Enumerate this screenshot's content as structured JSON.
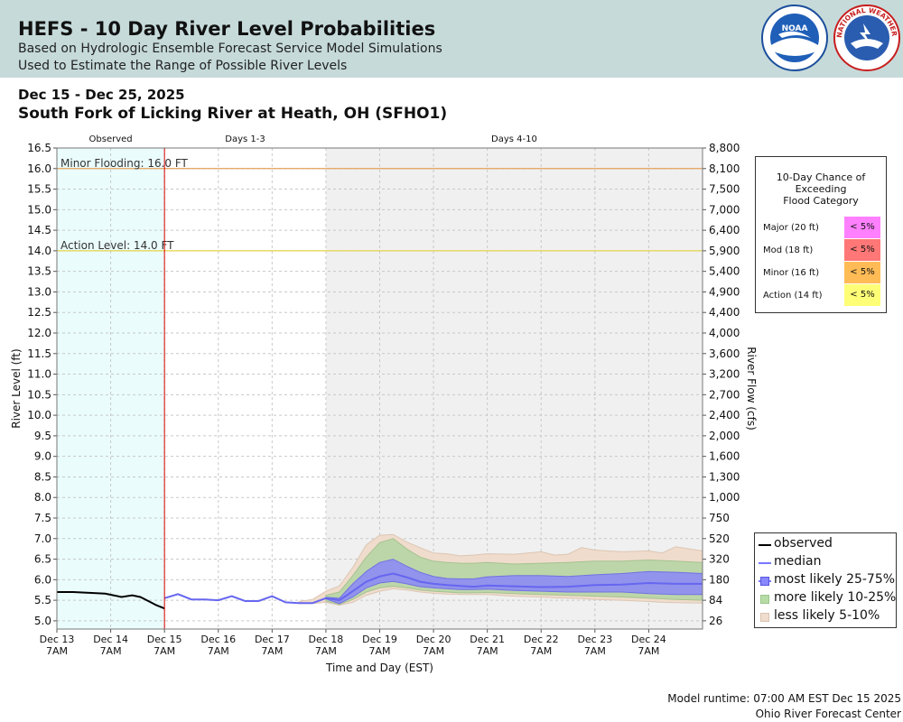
{
  "header": {
    "title": "HEFS - 10 Day River Level Probabilities",
    "subtitle1": "Based on Hydrologic Ensemble Forecast Service Model Simulations",
    "subtitle2": "Used to Estimate the Range of Possible River Levels",
    "noaa_logo_text": "NOAA",
    "nws_logo_text": "NATIONAL WEATHER SERVICE"
  },
  "date_range": "Dec 15 - Dec 25, 2025",
  "location": "South Fork of Licking River at Heath, OH (SFHO1)",
  "probability_table": {
    "title_line1": "10-Day Chance of",
    "title_line2": "Exceeding",
    "title_line3": "Flood Category",
    "rows": [
      {
        "label": "Major (20 ft)",
        "value": "< 5%",
        "color": "#ff80ff"
      },
      {
        "label": "Mod (18 ft)",
        "value": "< 5%",
        "color": "#ff7777"
      },
      {
        "label": "Minor (16 ft)",
        "value": "< 5%",
        "color": "#ffbb55"
      },
      {
        "label": "Action (14 ft)",
        "value": "< 5%",
        "color": "#ffff77"
      }
    ]
  },
  "legend": [
    {
      "label": "observed",
      "kind": "line",
      "color": "#000000"
    },
    {
      "label": "median",
      "kind": "line",
      "color": "#7777ff"
    },
    {
      "label": "most likely 25-75%",
      "kind": "square",
      "color": "#8888ff"
    },
    {
      "label": "more likely 10-25%",
      "kind": "square",
      "color": "#b6dca6"
    },
    {
      "label": "less likely 5-10%",
      "kind": "square",
      "color": "#f0dccc"
    }
  ],
  "footer": {
    "runtime": "Model runtime: 07:00 AM EST Dec 15 2025",
    "center": "Ohio River Forecast Center"
  },
  "chart_data": {
    "type": "area",
    "title": "South Fork of Licking River at Heath, OH (SFHO1)",
    "xlabel": "Time and Day (EST)",
    "ylabel": "River Level (ft)",
    "y2label": "River Flow (cfs)",
    "ylim": [
      4.8,
      16.5
    ],
    "y_ticks": [
      5.0,
      5.5,
      6.0,
      6.5,
      7.0,
      7.5,
      8.0,
      8.5,
      9.0,
      9.5,
      10.0,
      10.5,
      11.0,
      11.5,
      12.0,
      12.5,
      13.0,
      13.5,
      14.0,
      14.5,
      15.0,
      15.5,
      16.0,
      16.5
    ],
    "y2_ticks": [
      {
        "level": 16.5,
        "label": "8,800"
      },
      {
        "level": 16.0,
        "label": "8,100"
      },
      {
        "level": 15.5,
        "label": "7,500"
      },
      {
        "level": 15.0,
        "label": "7,000"
      },
      {
        "level": 14.5,
        "label": "6,400"
      },
      {
        "level": 14.0,
        "label": "5,900"
      },
      {
        "level": 13.5,
        "label": "5,400"
      },
      {
        "level": 13.0,
        "label": "4,900"
      },
      {
        "level": 12.5,
        "label": "4,400"
      },
      {
        "level": 12.0,
        "label": "4,000"
      },
      {
        "level": 11.5,
        "label": "3,600"
      },
      {
        "level": 11.0,
        "label": "3,200"
      },
      {
        "level": 10.5,
        "label": "2,700"
      },
      {
        "level": 10.0,
        "label": "2,400"
      },
      {
        "level": 9.5,
        "label": "2,000"
      },
      {
        "level": 9.0,
        "label": "1,600"
      },
      {
        "level": 8.5,
        "label": "1,300"
      },
      {
        "level": 8.0,
        "label": "1,000"
      },
      {
        "level": 7.5,
        "label": "750"
      },
      {
        "level": 7.0,
        "label": "520"
      },
      {
        "level": 6.5,
        "label": "320"
      },
      {
        "level": 6.0,
        "label": "180"
      },
      {
        "level": 5.5,
        "label": "84"
      },
      {
        "level": 5.0,
        "label": "26"
      }
    ],
    "xlim": [
      0,
      12
    ],
    "x_ticks": [
      {
        "t": 0,
        "day": "Dec 13",
        "time": "7AM"
      },
      {
        "t": 1,
        "day": "Dec 14",
        "time": "7AM"
      },
      {
        "t": 2,
        "day": "Dec 15",
        "time": "7AM"
      },
      {
        "t": 3,
        "day": "Dec 16",
        "time": "7AM"
      },
      {
        "t": 4,
        "day": "Dec 17",
        "time": "7AM"
      },
      {
        "t": 5,
        "day": "Dec 18",
        "time": "7AM"
      },
      {
        "t": 6,
        "day": "Dec 19",
        "time": "7AM"
      },
      {
        "t": 7,
        "day": "Dec 20",
        "time": "7AM"
      },
      {
        "t": 8,
        "day": "Dec 21",
        "time": "7AM"
      },
      {
        "t": 9,
        "day": "Dec 22",
        "time": "7AM"
      },
      {
        "t": 10,
        "day": "Dec 23",
        "time": "7AM"
      },
      {
        "t": 11,
        "day": "Dec 24",
        "time": "7AM"
      }
    ],
    "regions": [
      {
        "label": "Observed",
        "start": 0,
        "end": 2,
        "color": "#eafcfc"
      },
      {
        "label": "Days 1-3",
        "start": 2,
        "end": 5,
        "color": "#ffffff"
      },
      {
        "label": "Days 4-10",
        "start": 5,
        "end": 12,
        "color": "#f0f0f0"
      }
    ],
    "thresholds": [
      {
        "label": "Minor Flooding: 16.0 FT",
        "level": 16.0,
        "color": "#e5a25a"
      },
      {
        "label": "Action Level: 14.0 FT",
        "level": 14.0,
        "color": "#e5d44a"
      }
    ],
    "observed": {
      "name": "observed",
      "t": [
        0,
        0.3,
        0.6,
        0.9,
        1.05,
        1.2,
        1.4,
        1.55,
        1.7,
        1.85,
        2.0
      ],
      "values": [
        5.7,
        5.7,
        5.68,
        5.66,
        5.62,
        5.58,
        5.62,
        5.58,
        5.48,
        5.38,
        5.3
      ]
    },
    "median": {
      "name": "median",
      "t": [
        2.0,
        2.25,
        2.5,
        2.75,
        3.0,
        3.25,
        3.5,
        3.75,
        4.0,
        4.25,
        4.5,
        4.75,
        5.0,
        5.25,
        5.5,
        5.75,
        6.0,
        6.25,
        6.5,
        6.75,
        7.0,
        7.25,
        7.5,
        7.75,
        8.0,
        8.5,
        9.0,
        9.5,
        10.0,
        10.5,
        11.0,
        11.5,
        12.0
      ],
      "values": [
        5.55,
        5.65,
        5.52,
        5.52,
        5.5,
        5.6,
        5.48,
        5.48,
        5.6,
        5.45,
        5.43,
        5.43,
        5.55,
        5.5,
        5.72,
        5.95,
        6.08,
        6.15,
        6.06,
        5.95,
        5.9,
        5.87,
        5.85,
        5.83,
        5.86,
        5.84,
        5.82,
        5.83,
        5.87,
        5.88,
        5.92,
        5.9,
        5.9
      ]
    },
    "band_25_75": {
      "name": "most likely 25-75%",
      "t": [
        5.0,
        5.25,
        5.5,
        5.75,
        6.0,
        6.25,
        6.5,
        6.75,
        7.0,
        7.25,
        7.5,
        7.75,
        8.0,
        8.5,
        9.0,
        9.5,
        10.0,
        10.5,
        11.0,
        11.5,
        12.0
      ],
      "upper": [
        5.57,
        5.55,
        5.9,
        6.2,
        6.42,
        6.5,
        6.33,
        6.18,
        6.08,
        6.03,
        6.02,
        6.02,
        6.07,
        6.1,
        6.1,
        6.08,
        6.12,
        6.15,
        6.2,
        6.18,
        6.15
      ],
      "lower": [
        5.53,
        5.42,
        5.58,
        5.8,
        5.92,
        5.96,
        5.9,
        5.83,
        5.8,
        5.78,
        5.76,
        5.76,
        5.77,
        5.74,
        5.72,
        5.7,
        5.7,
        5.7,
        5.66,
        5.64,
        5.64
      ]
    },
    "band_10_25": {
      "name": "more likely 10-25%",
      "t": [
        5.0,
        5.25,
        5.5,
        5.75,
        6.0,
        6.25,
        6.5,
        6.75,
        7.0,
        7.25,
        7.5,
        7.75,
        8.0,
        8.5,
        9.0,
        9.5,
        10.0,
        10.5,
        11.0,
        11.5,
        12.0
      ],
      "upper": [
        5.62,
        5.7,
        6.1,
        6.55,
        6.9,
        7.0,
        6.75,
        6.55,
        6.45,
        6.42,
        6.4,
        6.4,
        6.42,
        6.38,
        6.4,
        6.42,
        6.45,
        6.45,
        6.48,
        6.45,
        6.42
      ],
      "lower": [
        5.48,
        5.4,
        5.52,
        5.7,
        5.8,
        5.84,
        5.8,
        5.75,
        5.72,
        5.7,
        5.68,
        5.68,
        5.69,
        5.66,
        5.64,
        5.62,
        5.6,
        5.58,
        5.55,
        5.52,
        5.5
      ]
    },
    "band_5_10": {
      "name": "less likely 5-10%",
      "t": [
        4.5,
        4.75,
        5.0,
        5.25,
        5.5,
        5.75,
        6.0,
        6.25,
        6.5,
        6.75,
        7.0,
        7.25,
        7.5,
        7.75,
        8.0,
        8.5,
        9.0,
        9.25,
        9.5,
        9.75,
        10.0,
        10.5,
        11.0,
        11.25,
        11.5,
        12.0
      ],
      "upper": [
        5.47,
        5.52,
        5.72,
        5.85,
        6.3,
        6.85,
        7.08,
        7.1,
        6.92,
        6.78,
        6.65,
        6.63,
        6.58,
        6.6,
        6.63,
        6.62,
        6.68,
        6.6,
        6.62,
        6.78,
        6.72,
        6.68,
        6.7,
        6.65,
        6.8,
        6.7
      ],
      "lower": [
        5.42,
        5.42,
        5.45,
        5.38,
        5.45,
        5.62,
        5.72,
        5.78,
        5.75,
        5.7,
        5.67,
        5.65,
        5.64,
        5.64,
        5.64,
        5.6,
        5.58,
        5.56,
        5.55,
        5.54,
        5.52,
        5.5,
        5.47,
        5.45,
        5.44,
        5.43
      ]
    }
  }
}
